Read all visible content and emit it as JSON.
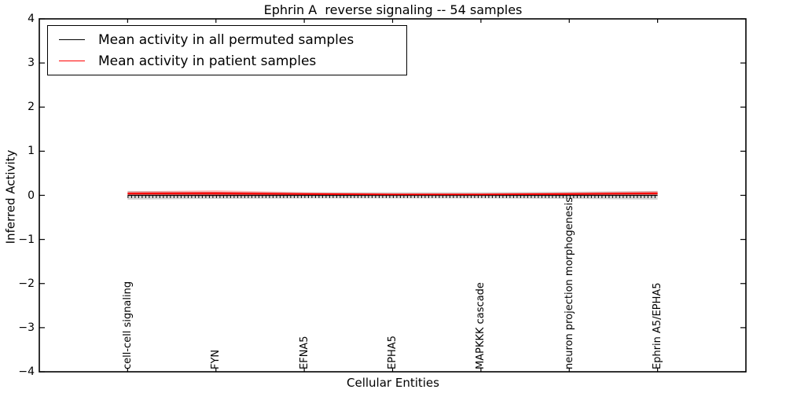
{
  "title": "Ephrin A  reverse signaling -- 54 samples",
  "legend": {
    "entries": [
      {
        "label": "Mean activity in all permuted samples",
        "color": "#000000"
      },
      {
        "label": "Mean activity in patient samples",
        "color": "#ff0000"
      }
    ],
    "position": "upper left"
  },
  "chart_data": {
    "type": "line",
    "title": "Ephrin A  reverse signaling -- 54 samples",
    "xlabel": "Cellular Entities",
    "ylabel": "Inferred Activity",
    "xlim": [
      0,
      8
    ],
    "ylim": [
      -4,
      4
    ],
    "y_ticks": [
      4,
      3,
      2,
      1,
      0,
      -1,
      -2,
      -3,
      -4
    ],
    "y_tick_labels": [
      "4",
      "3",
      "2",
      "1",
      "0",
      "−1",
      "−2",
      "−3",
      "−4"
    ],
    "categories": [
      "cell-cell signaling",
      "FYN",
      "EFNA5",
      "EPHA5",
      "MAPKKK cascade",
      "neuron projection morphogenesis",
      "Ephrin A5/EPHA5"
    ],
    "category_x": [
      1,
      2,
      3,
      4,
      5,
      6,
      7
    ],
    "grid": false,
    "legend_position": "upper left",
    "series": [
      {
        "name": "Mean activity in all permuted samples",
        "color": "#000000",
        "values": [
          0,
          0,
          0,
          0,
          0,
          0,
          0
        ],
        "band": [
          0.1,
          0.08,
          0.07,
          0.07,
          0.07,
          0.08,
          0.1
        ],
        "band_color": "rgba(120,120,120,0.30)"
      },
      {
        "name": "Mean activity in patient samples",
        "color": "#ff0000",
        "values": [
          0.04,
          0.045,
          0.03,
          0.02,
          0.02,
          0.03,
          0.045
        ],
        "band": [
          0.05,
          0.07,
          0.04,
          0.03,
          0.03,
          0.04,
          0.05
        ],
        "band_color": "rgba(255,0,0,0.22)"
      }
    ]
  }
}
